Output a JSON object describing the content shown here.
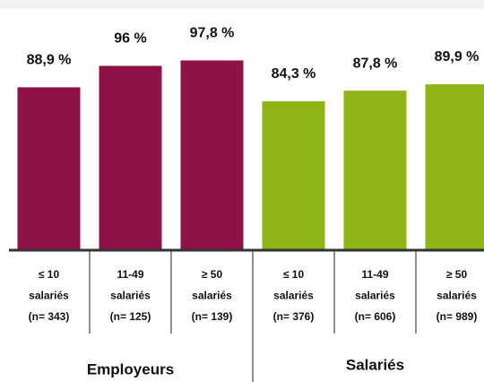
{
  "chart_data": {
    "type": "bar",
    "categories": [
      [
        "≤ 10",
        "salariés",
        "(n= 343)"
      ],
      [
        "11-49",
        "salariés",
        "(n= 125)"
      ],
      [
        "≥ 50",
        "salariés",
        "(n= 139)"
      ],
      [
        "≤ 10",
        "salariés",
        "(n= 376)"
      ],
      [
        "11-49",
        "salariés",
        "(n= 606)"
      ],
      [
        "≥ 50",
        "salariés",
        "(n= 989)"
      ]
    ],
    "series": [
      {
        "name": "Employeurs",
        "color": "#8e1148",
        "values": [
          88.9,
          96,
          97.8,
          null,
          null,
          null
        ],
        "value_labels": [
          "88,9 %",
          "96 %",
          "97,8 %",
          null,
          null,
          null
        ]
      },
      {
        "name": "Salariés",
        "color": "#8cb515",
        "values": [
          null,
          null,
          null,
          84.3,
          87.8,
          89.9
        ],
        "value_labels": [
          null,
          null,
          null,
          "84,3 %",
          "87,8 %",
          "89,9 %"
        ]
      }
    ],
    "ylim": [
      35,
      100
    ]
  }
}
